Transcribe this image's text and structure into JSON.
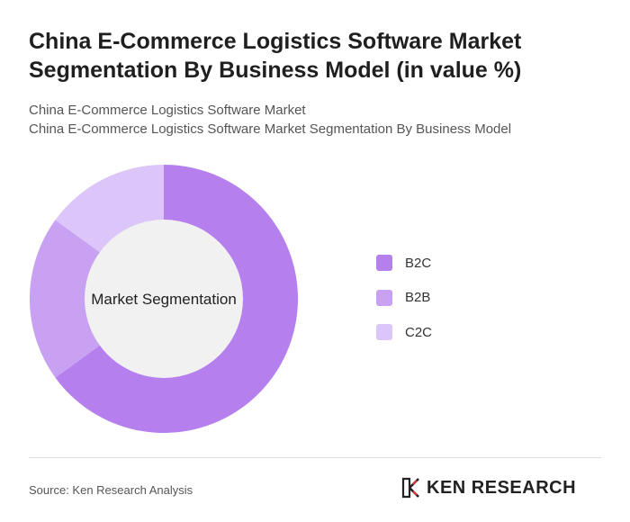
{
  "header": {
    "title_line1": "China E-Commerce Logistics Software Market",
    "title_line2": "Segmentation By Business Model (in value %)",
    "subtitle1": "China E-Commerce Logistics Software Market",
    "subtitle2": "China E-Commerce Logistics Software Market Segmentation By Business Model"
  },
  "chart_data": {
    "type": "pie",
    "variant": "donut",
    "center_label": "Market Segmentation",
    "categories": [
      "B2C",
      "B2B",
      "C2C"
    ],
    "values": [
      65,
      20,
      15
    ],
    "colors": [
      "#b57fee",
      "#c9a1f3",
      "#dcc5f8"
    ],
    "legend_position": "right"
  },
  "footer": {
    "source": "Source: Ken Research Analysis",
    "logo_text": "KEN RESEARCH"
  },
  "colors": {
    "donut_center": "#f1f1f1"
  }
}
